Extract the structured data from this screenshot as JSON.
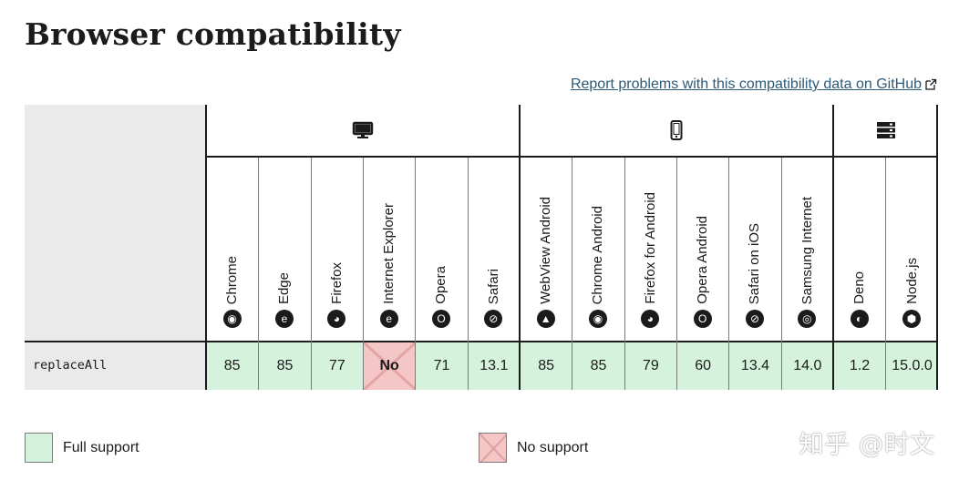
{
  "title": "Browser compatibility",
  "report_link": "Report problems with this compatibility data on GitHub",
  "groups": [
    {
      "name": "desktop",
      "icon": "desktop-icon"
    },
    {
      "name": "mobile",
      "icon": "mobile-icon"
    },
    {
      "name": "server",
      "icon": "server-icon"
    }
  ],
  "browsers": [
    {
      "name": "Chrome",
      "icon": "chrome-icon",
      "glyph": "◉"
    },
    {
      "name": "Edge",
      "icon": "edge-icon",
      "glyph": "e"
    },
    {
      "name": "Firefox",
      "icon": "firefox-icon",
      "glyph": "◕"
    },
    {
      "name": "Internet Explorer",
      "icon": "internet-explorer-icon",
      "glyph": "e"
    },
    {
      "name": "Opera",
      "icon": "opera-icon",
      "glyph": "O"
    },
    {
      "name": "Safari",
      "icon": "safari-icon",
      "glyph": "⊘"
    },
    {
      "name": "WebView Android",
      "icon": "android-icon",
      "glyph": "▲"
    },
    {
      "name": "Chrome Android",
      "icon": "chrome-icon",
      "glyph": "◉"
    },
    {
      "name": "Firefox for Android",
      "icon": "firefox-icon",
      "glyph": "◕"
    },
    {
      "name": "Opera Android",
      "icon": "opera-icon",
      "glyph": "O"
    },
    {
      "name": "Safari on iOS",
      "icon": "safari-icon",
      "glyph": "⊘"
    },
    {
      "name": "Samsung Internet",
      "icon": "samsung-internet-icon",
      "glyph": "◎"
    },
    {
      "name": "Deno",
      "icon": "deno-icon",
      "glyph": "◐"
    },
    {
      "name": "Node.js",
      "icon": "nodejs-icon",
      "glyph": "⬢"
    }
  ],
  "feature": {
    "name": "replaceAll",
    "support": [
      {
        "value": "85",
        "status": "full"
      },
      {
        "value": "85",
        "status": "full"
      },
      {
        "value": "77",
        "status": "full"
      },
      {
        "value": "No",
        "status": "no"
      },
      {
        "value": "71",
        "status": "full"
      },
      {
        "value": "13.1",
        "status": "full"
      },
      {
        "value": "85",
        "status": "full"
      },
      {
        "value": "85",
        "status": "full"
      },
      {
        "value": "79",
        "status": "full"
      },
      {
        "value": "60",
        "status": "full"
      },
      {
        "value": "13.4",
        "status": "full"
      },
      {
        "value": "14.0",
        "status": "full"
      },
      {
        "value": "1.2",
        "status": "full"
      },
      {
        "value": "15.0.0",
        "status": "full"
      }
    ]
  },
  "legend": {
    "full": "Full support",
    "no": "No support"
  },
  "watermark": "知乎 @时文",
  "colors": {
    "full_support": "#d4f2dc",
    "no_support": "#f5c6c6",
    "link": "#2c5a77"
  }
}
